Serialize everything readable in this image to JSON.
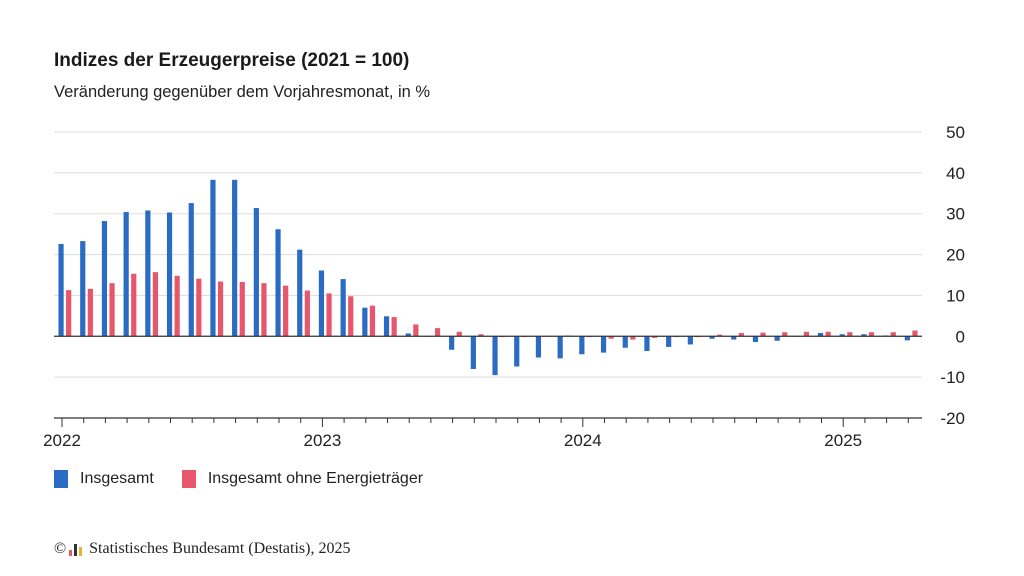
{
  "header": {
    "title": "Indizes der Erzeugerpreise (2021 = 100)",
    "subtitle": "Veränderung gegenüber dem Vorjahresmonat, in %"
  },
  "legend": {
    "series_a": "Insgesamt",
    "series_b": "Insgesamt ohne Energieträger"
  },
  "footer": {
    "copyright_symbol": "©",
    "source": "Statistisches Bundesamt (Destatis), 2025"
  },
  "colors": {
    "series_a": "#2a6cc4",
    "series_b": "#e8566b",
    "grid": "#dddddd",
    "axis": "#333333"
  },
  "chart_data": {
    "type": "bar",
    "title": "Indizes der Erzeugerpreise (2021 = 100)",
    "subtitle": "Veränderung gegenüber dem Vorjahresmonat, in %",
    "x_tick_labels": [
      "2022",
      "2023",
      "2024",
      "2025"
    ],
    "y_ticks": [
      50,
      40,
      30,
      20,
      10,
      0,
      -10,
      -20
    ],
    "ylim": [
      -20,
      50
    ],
    "y_axis_side": "right",
    "grid": true,
    "legend_position": "bottom-left",
    "categories": [
      "2022-01",
      "2022-02",
      "2022-03",
      "2022-04",
      "2022-05",
      "2022-06",
      "2022-07",
      "2022-08",
      "2022-09",
      "2022-10",
      "2022-11",
      "2022-12",
      "2023-01",
      "2023-02",
      "2023-03",
      "2023-04",
      "2023-05",
      "2023-06",
      "2023-07",
      "2023-08",
      "2023-09",
      "2023-10",
      "2023-11",
      "2023-12",
      "2024-01",
      "2024-02",
      "2024-03",
      "2024-04",
      "2024-05",
      "2024-06",
      "2024-07",
      "2024-08",
      "2024-09",
      "2024-10",
      "2024-11",
      "2024-12",
      "2025-01",
      "2025-02",
      "2025-03",
      "2025-04"
    ],
    "series": [
      {
        "name": "Insgesamt",
        "values": [
          22.6,
          23.3,
          28.2,
          30.4,
          30.8,
          30.3,
          32.6,
          38.3,
          38.3,
          31.4,
          26.2,
          21.2,
          16.1,
          14.0,
          7.0,
          4.9,
          0.7,
          0.1,
          -3.3,
          -8.0,
          -9.5,
          -7.4,
          -5.2,
          -5.4,
          -4.4,
          -4.0,
          -2.8,
          -3.6,
          -2.6,
          -2.0,
          -0.6,
          -0.8,
          -1.4,
          -1.1,
          0.1,
          0.8,
          0.5,
          0.5,
          0.2,
          -1.0
        ]
      },
      {
        "name": "Insgesamt ohne Energieträger",
        "values": [
          11.3,
          11.6,
          13.0,
          15.3,
          15.7,
          14.8,
          14.1,
          13.4,
          13.3,
          13.0,
          12.4,
          11.2,
          10.5,
          9.8,
          7.5,
          4.7,
          2.9,
          2.0,
          1.1,
          0.5,
          -0.2,
          -0.1,
          0.1,
          0.2,
          -0.1,
          -0.6,
          -0.8,
          -0.4,
          -0.2,
          -0.1,
          0.4,
          0.8,
          0.9,
          1.0,
          1.1,
          1.1,
          1.0,
          1.0,
          1.0,
          1.4
        ]
      }
    ]
  }
}
